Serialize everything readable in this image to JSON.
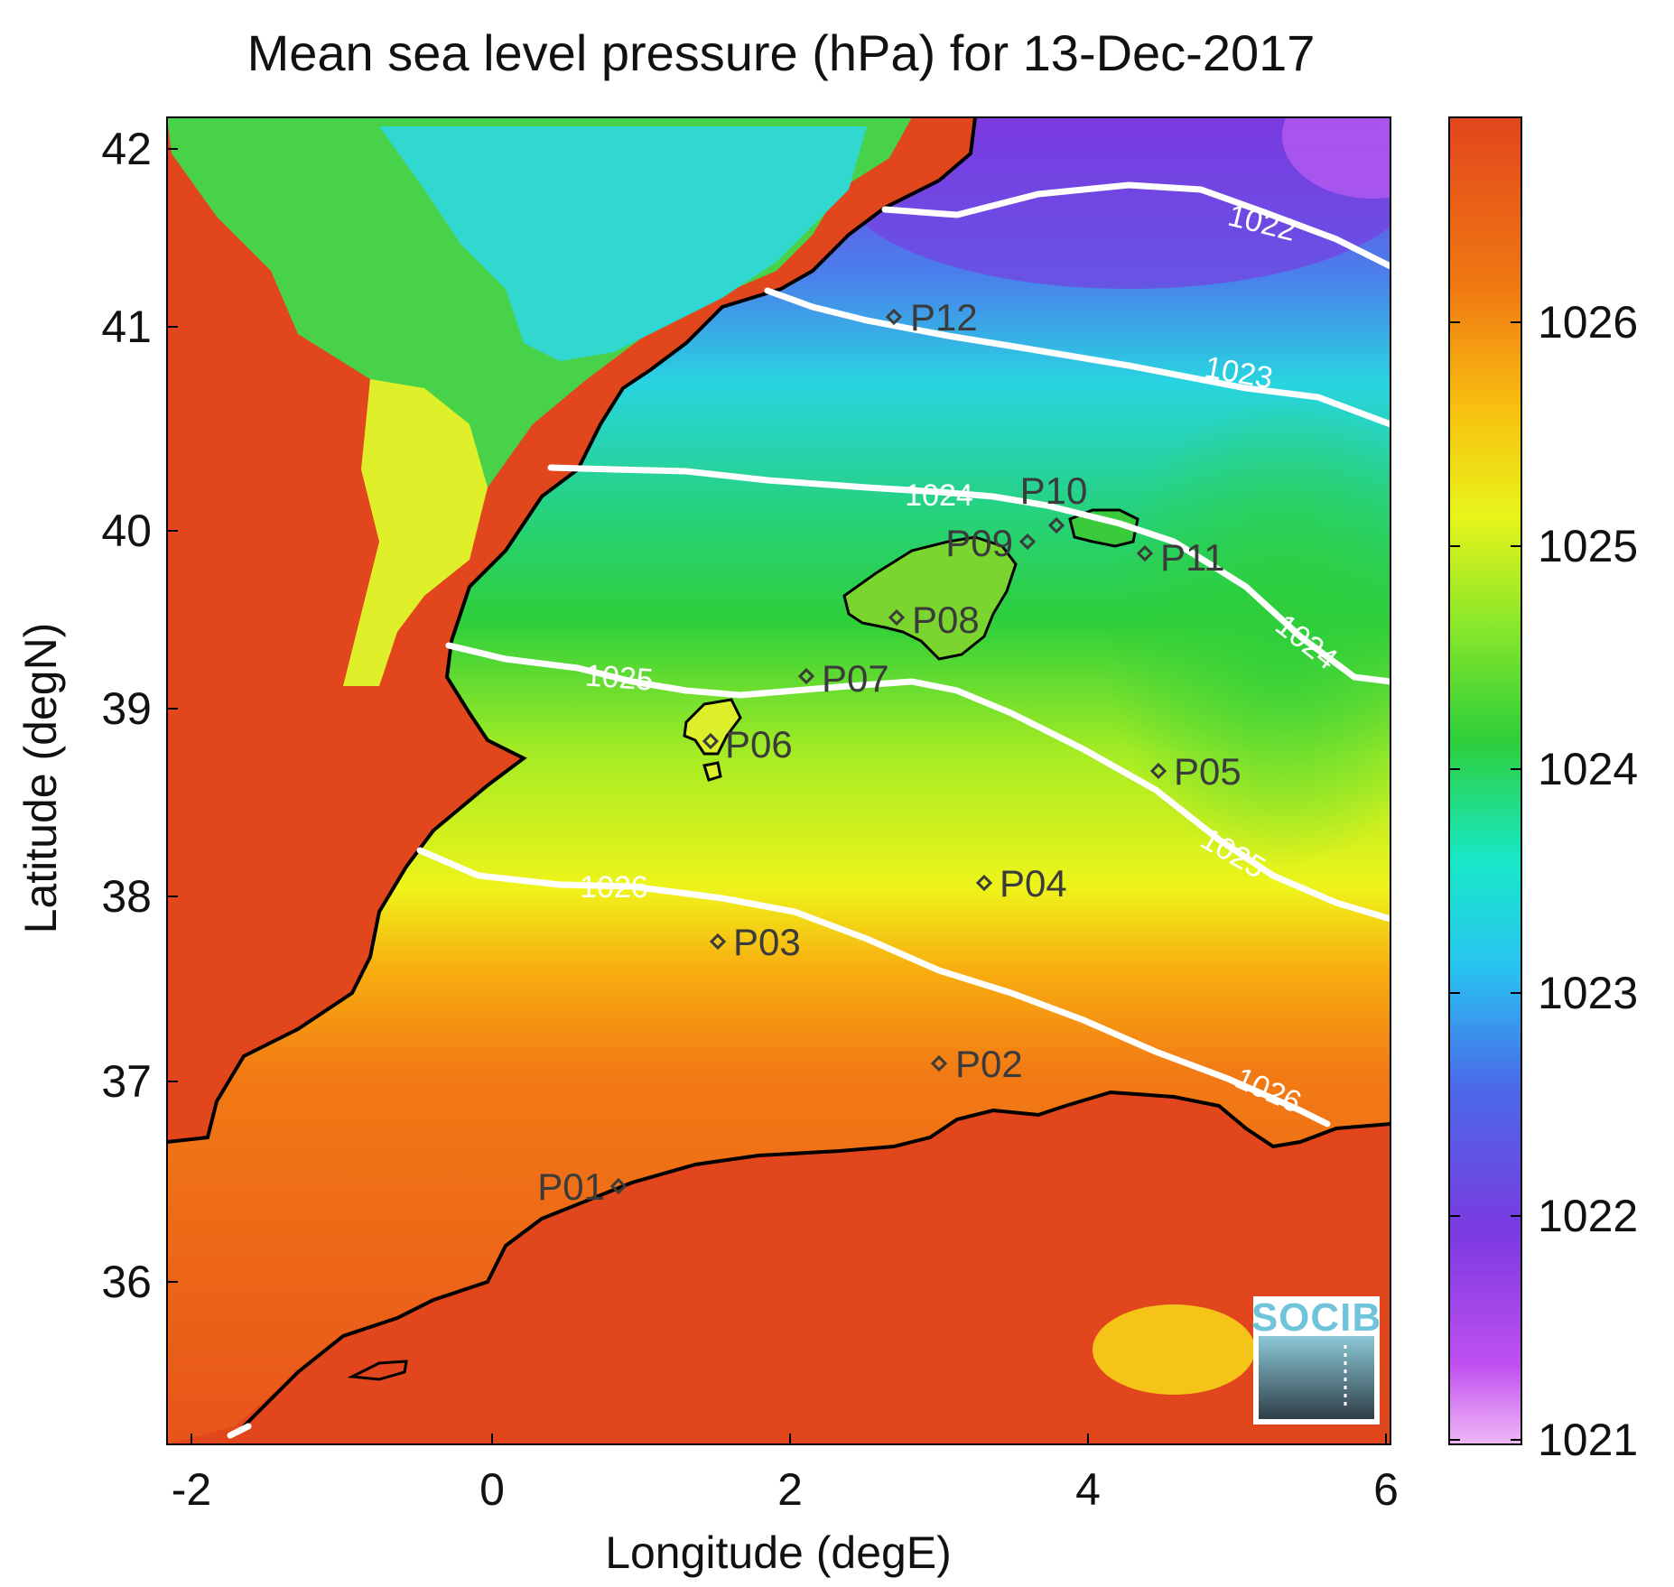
{
  "title": "Mean sea level pressure (hPa) for 13-Dec-2017",
  "xlabel": "Longitude (degE)",
  "ylabel": "Latitude (degN)",
  "x_ticks": [
    "-2",
    "0",
    "2",
    "4",
    "6"
  ],
  "y_ticks": [
    "42",
    "41",
    "40",
    "39",
    "38",
    "37",
    "36"
  ],
  "colorbar": {
    "ticks": [
      "1026",
      "1025",
      "1024",
      "1023",
      "1022",
      "1021"
    ],
    "range": [
      1021,
      1026.7
    ],
    "colors": [
      "#f0b8f5",
      "#b040f0",
      "#7a3ae0",
      "#4a6ae8",
      "#28c4f0",
      "#18e8c8",
      "#2ecf3a",
      "#c8f020",
      "#f6f41a",
      "#f8b010",
      "#f06a12",
      "#e2461c"
    ]
  },
  "contour_labels": [
    "1022",
    "1023",
    "1024",
    "1024",
    "1025",
    "1025",
    "1026",
    "1026"
  ],
  "stations": [
    "P01",
    "P02",
    "P03",
    "P04",
    "P05",
    "P06",
    "P07",
    "P08",
    "P09",
    "P10",
    "P11",
    "P12"
  ],
  "logo": "SOCIB",
  "colors": {
    "land": "#e2461c",
    "contour": "#ffffff",
    "coast": "#000000",
    "station": "#3b3b3b"
  }
}
